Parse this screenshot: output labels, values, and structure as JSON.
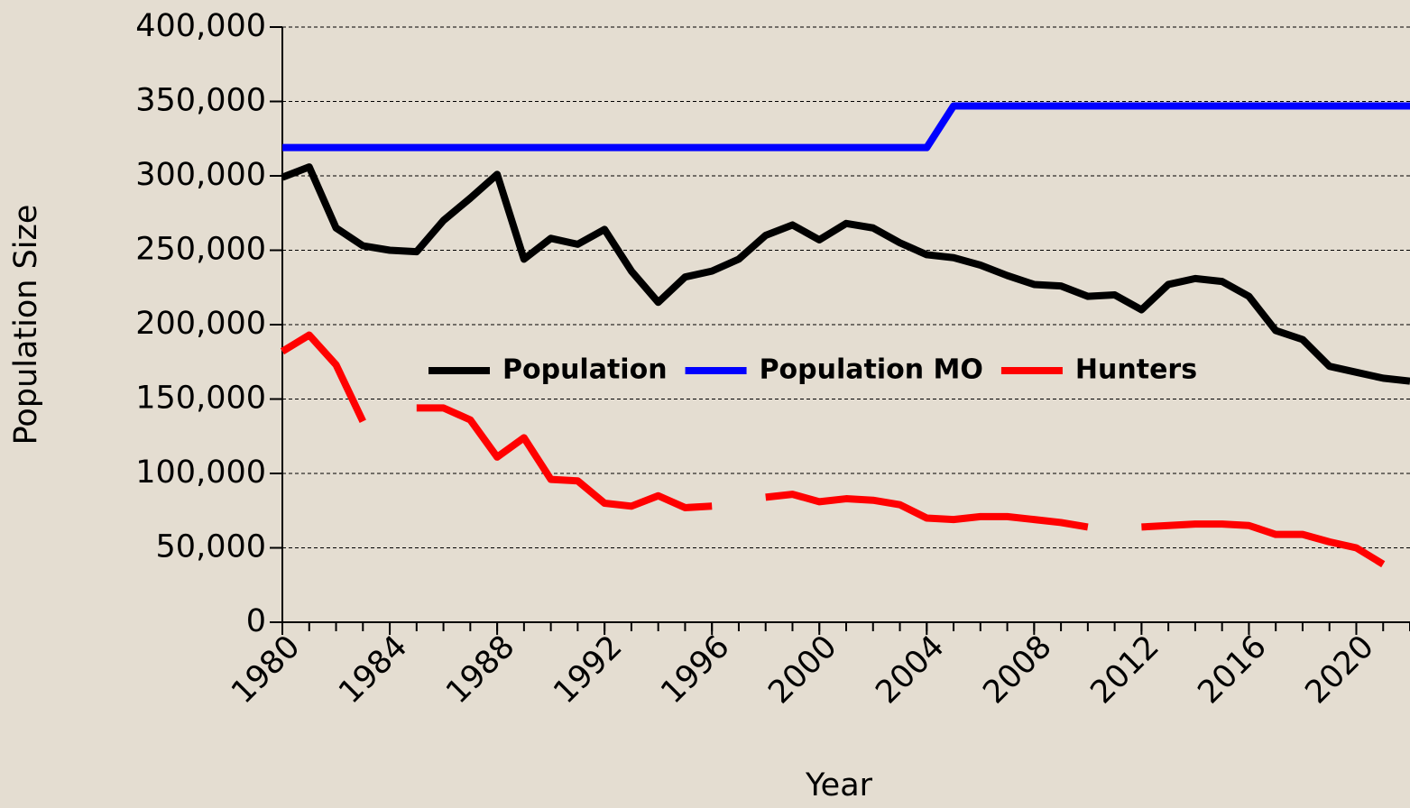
{
  "chart_data": {
    "type": "line",
    "x_label": "Year",
    "y_label": "Population Size",
    "x": [
      1980,
      1981,
      1982,
      1983,
      1984,
      1985,
      1986,
      1987,
      1988,
      1989,
      1990,
      1991,
      1992,
      1993,
      1994,
      1995,
      1996,
      1997,
      1998,
      1999,
      2000,
      2001,
      2002,
      2003,
      2004,
      2005,
      2006,
      2007,
      2008,
      2009,
      2010,
      2011,
      2012,
      2013,
      2014,
      2015,
      2016,
      2017,
      2018,
      2019,
      2020,
      2021,
      2022
    ],
    "series": [
      {
        "name": "Population",
        "color": "#000000",
        "values": [
          299000,
          306000,
          265000,
          253000,
          250000,
          249000,
          270000,
          285000,
          301000,
          244000,
          258000,
          254000,
          264000,
          236000,
          215000,
          232000,
          236000,
          244000,
          260000,
          267000,
          257000,
          268000,
          265000,
          255000,
          247000,
          245000,
          240000,
          233000,
          227000,
          226000,
          219000,
          220000,
          210000,
          227000,
          231000,
          229000,
          219000,
          196000,
          190000,
          172000,
          168000,
          164000,
          162000
        ]
      },
      {
        "name": "Population MO",
        "color": "#0000ff",
        "values": [
          319000,
          319000,
          319000,
          319000,
          319000,
          319000,
          319000,
          319000,
          319000,
          319000,
          319000,
          319000,
          319000,
          319000,
          319000,
          319000,
          319000,
          319000,
          319000,
          319000,
          319000,
          319000,
          319000,
          319000,
          319000,
          347000,
          347000,
          347000,
          347000,
          347000,
          347000,
          347000,
          347000,
          347000,
          347000,
          347000,
          347000,
          347000,
          347000,
          347000,
          347000,
          347000,
          347000
        ]
      },
      {
        "name": "Hunters",
        "color": "#ff0000",
        "values": [
          182000,
          193000,
          173000,
          135000,
          null,
          144000,
          144000,
          136000,
          111000,
          124000,
          96000,
          95000,
          80000,
          78000,
          85000,
          77000,
          78000,
          null,
          84000,
          86000,
          81000,
          83000,
          82000,
          79000,
          70000,
          69000,
          71000,
          71000,
          69000,
          67000,
          64000,
          null,
          64000,
          65000,
          66000,
          66000,
          65000,
          59000,
          59000,
          54000,
          50000,
          39000,
          null
        ]
      }
    ],
    "xlim": [
      1980,
      2022
    ],
    "xticks": [
      1980,
      1984,
      1988,
      1992,
      1996,
      2000,
      2004,
      2008,
      2012,
      2016,
      2020
    ],
    "x_minor_tick_step": 1,
    "ylim": [
      0,
      400000
    ],
    "yticks": [
      0,
      {
        "value": 50000,
        "label": "50,000"
      },
      {
        "value": 100000,
        "label": "100,000"
      },
      {
        "value": 150000,
        "label": "150,000"
      },
      {
        "value": 200000,
        "label": "200,000"
      },
      {
        "value": 250000,
        "label": "250,000"
      },
      {
        "value": 300000,
        "label": "300,000"
      },
      {
        "value": 350000,
        "label": "350,000"
      },
      {
        "value": 400000,
        "label": "400,000"
      }
    ],
    "grid": true
  }
}
